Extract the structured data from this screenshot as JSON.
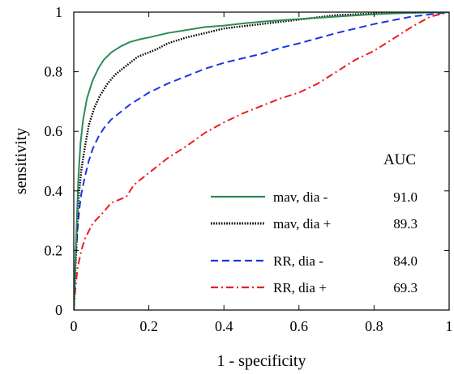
{
  "chart_data": {
    "type": "line",
    "xlabel": "1 - specificity",
    "ylabel": "sensitivity",
    "xlim": [
      0,
      1
    ],
    "ylim": [
      0,
      1
    ],
    "grid": false,
    "legend_placement": "bottom-right",
    "xticks": [
      "0",
      "0.2",
      "0.4",
      "0.6",
      "0.8",
      "1"
    ],
    "yticks": [
      "0",
      "0.2",
      "0.4",
      "0.6",
      "0.8",
      "1"
    ],
    "auc_header": "AUC",
    "series": [
      {
        "name": "mav, dia -",
        "auc": "91.0",
        "color": "#2e8b57",
        "style": "solid",
        "x": [
          0,
          0.004,
          0.008,
          0.012,
          0.018,
          0.025,
          0.035,
          0.05,
          0.065,
          0.08,
          0.1,
          0.125,
          0.15,
          0.18,
          0.2,
          0.25,
          0.3,
          0.35,
          0.4,
          0.45,
          0.5,
          0.6,
          0.7,
          0.8,
          0.9,
          1.0
        ],
        "y": [
          0,
          0.16,
          0.3,
          0.44,
          0.56,
          0.64,
          0.71,
          0.77,
          0.81,
          0.84,
          0.865,
          0.885,
          0.9,
          0.91,
          0.915,
          0.93,
          0.94,
          0.95,
          0.955,
          0.962,
          0.968,
          0.977,
          0.985,
          0.993,
          0.998,
          1.0
        ]
      },
      {
        "name": "mav, dia +",
        "auc": "89.3",
        "color": "#000000",
        "style": "dotted",
        "x": [
          0,
          0.004,
          0.008,
          0.013,
          0.02,
          0.03,
          0.04,
          0.055,
          0.07,
          0.09,
          0.11,
          0.13,
          0.15,
          0.17,
          0.2,
          0.22,
          0.25,
          0.3,
          0.35,
          0.4,
          0.5,
          0.6,
          0.7,
          0.8,
          0.9,
          1.0
        ],
        "y": [
          0,
          0.13,
          0.25,
          0.38,
          0.47,
          0.55,
          0.62,
          0.68,
          0.72,
          0.76,
          0.79,
          0.81,
          0.83,
          0.85,
          0.865,
          0.875,
          0.895,
          0.915,
          0.93,
          0.945,
          0.96,
          0.975,
          0.99,
          0.995,
          0.998,
          1.0
        ]
      },
      {
        "name": "RR, dia -",
        "auc": "84.0",
        "color": "#1a35e0",
        "style": "dashed",
        "x": [
          0,
          0.004,
          0.01,
          0.015,
          0.02,
          0.03,
          0.04,
          0.05,
          0.065,
          0.08,
          0.1,
          0.12,
          0.15,
          0.2,
          0.25,
          0.3,
          0.35,
          0.4,
          0.45,
          0.5,
          0.55,
          0.6,
          0.7,
          0.8,
          0.9,
          1.0
        ],
        "y": [
          0,
          0.15,
          0.27,
          0.34,
          0.39,
          0.45,
          0.5,
          0.54,
          0.58,
          0.61,
          0.64,
          0.66,
          0.69,
          0.73,
          0.76,
          0.785,
          0.81,
          0.83,
          0.845,
          0.86,
          0.88,
          0.895,
          0.93,
          0.96,
          0.985,
          1.0
        ]
      },
      {
        "name": "RR, dia +",
        "auc": "69.3",
        "color": "#ee1c1c",
        "style": "dashdot",
        "x": [
          0,
          0.005,
          0.01,
          0.02,
          0.03,
          0.05,
          0.08,
          0.1,
          0.14,
          0.16,
          0.2,
          0.25,
          0.3,
          0.35,
          0.4,
          0.45,
          0.5,
          0.55,
          0.6,
          0.65,
          0.7,
          0.75,
          0.8,
          0.85,
          0.9,
          0.95,
          1.0
        ],
        "y": [
          0,
          0.08,
          0.14,
          0.2,
          0.24,
          0.29,
          0.33,
          0.36,
          0.38,
          0.42,
          0.46,
          0.51,
          0.55,
          0.595,
          0.63,
          0.66,
          0.685,
          0.71,
          0.73,
          0.76,
          0.8,
          0.84,
          0.87,
          0.91,
          0.95,
          0.985,
          1.0
        ]
      }
    ]
  }
}
